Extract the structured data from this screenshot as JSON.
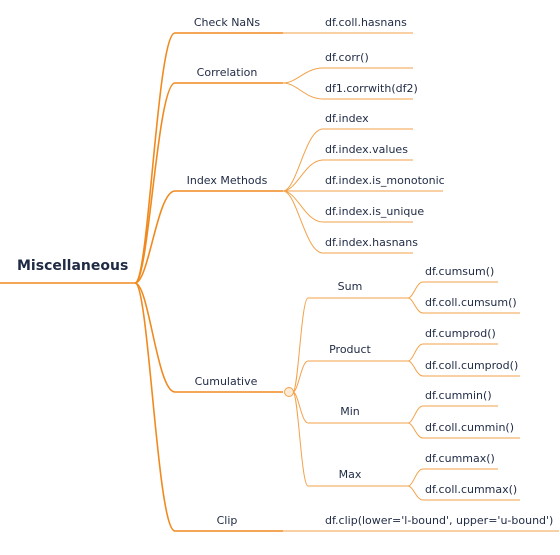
{
  "root": "Miscellaneous",
  "branches": [
    {
      "label": "Check NaNs",
      "children": [
        "df.coll.hasnans"
      ]
    },
    {
      "label": "Correlation",
      "children": [
        "df.corr()",
        "df1.corrwith(df2)"
      ]
    },
    {
      "label": "Index Methods",
      "children": [
        "df.index",
        "df.index.values",
        "df.index.is_monotonic",
        "df.index.is_unique",
        "df.index.hasnans"
      ]
    },
    {
      "label": "Cumulative",
      "groups": [
        {
          "label": "Sum",
          "children": [
            "df.cumsum()",
            "df.coll.cumsum()"
          ]
        },
        {
          "label": "Product",
          "children": [
            "df.cumprod()",
            "df.coll.cumprod()"
          ]
        },
        {
          "label": "Min",
          "children": [
            "df.cummin()",
            "df.coll.cummin()"
          ]
        },
        {
          "label": "Max",
          "children": [
            "df.cummax()",
            "df.coll.cummax()"
          ]
        }
      ]
    },
    {
      "label": "Clip",
      "children": [
        "df.clip(lower='l-bound', upper='u-bound')"
      ]
    }
  ],
  "colors": {
    "branch": "#f08a1e",
    "edge": "#f2a24a",
    "text": "#1f2a44"
  }
}
